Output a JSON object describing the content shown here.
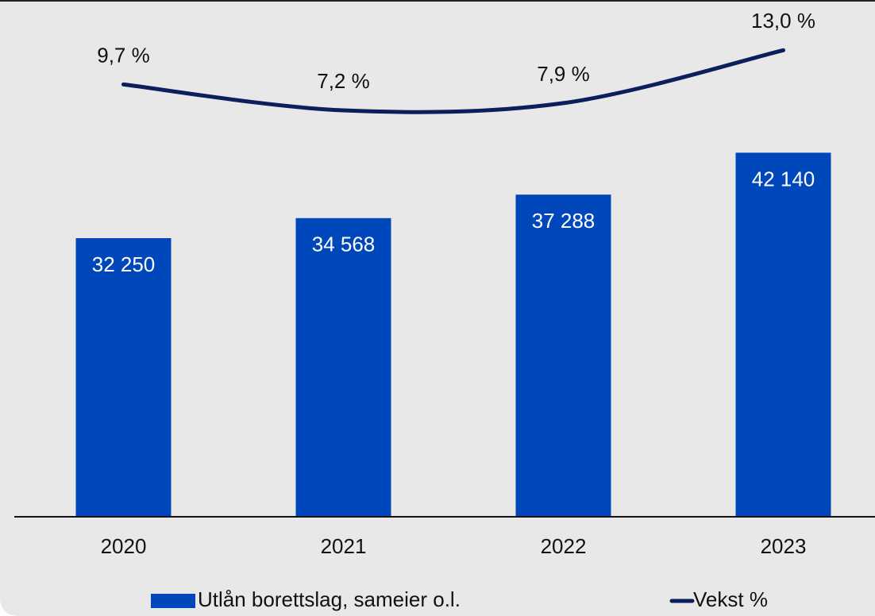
{
  "chart_data": {
    "type": "bar",
    "categories": [
      "2020",
      "2021",
      "2022",
      "2023"
    ],
    "ylim": [
      0,
      60000
    ],
    "y2lim": [
      -32,
      18
    ],
    "legend": "bottom",
    "series": [
      {
        "name": "Utlån borettslag, sameier o.l.",
        "type": "bar",
        "color": "#0047bb",
        "values": [
          32250,
          34568,
          37288,
          42140
        ],
        "value_labels": [
          "32 250",
          "34 568",
          "37 288",
          "42 140"
        ]
      },
      {
        "name": "Vekst %",
        "type": "line",
        "axis": "y2",
        "color": "#0a1f5c",
        "values": [
          9.7,
          7.2,
          7.9,
          13.0
        ],
        "value_labels": [
          "9,7 %",
          "7,2 %",
          "7,9 %",
          "13,0 %"
        ]
      }
    ]
  }
}
